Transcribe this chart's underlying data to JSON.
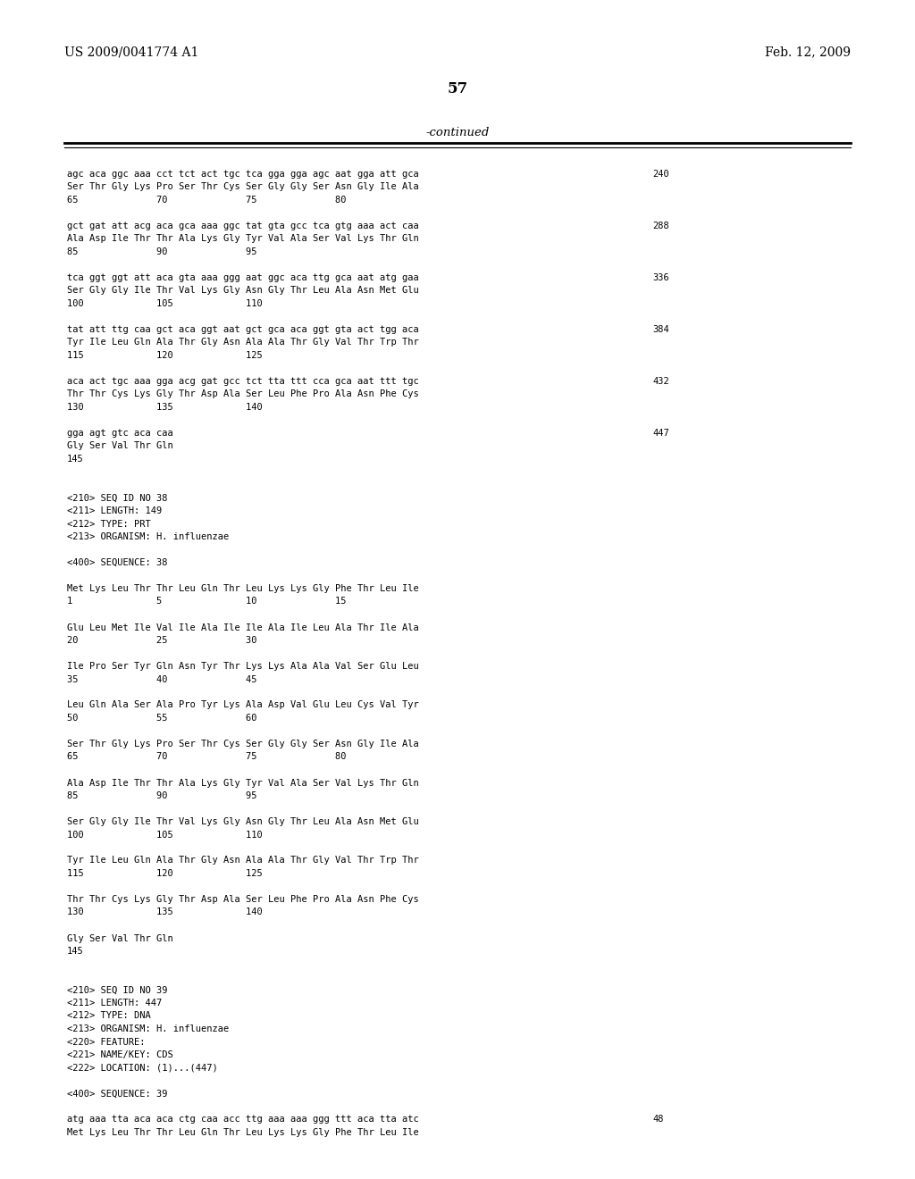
{
  "header_left": "US 2009/0041774 A1",
  "header_right": "Feb. 12, 2009",
  "page_number": "57",
  "continued_label": "-continued",
  "background_color": "#ffffff",
  "text_color": "#000000",
  "content": [
    {
      "text": "agc aca ggc aaa cct tct act tgc tca gga gga agc aat gga att gca",
      "num": "240"
    },
    {
      "text": "Ser Thr Gly Lys Pro Ser Thr Cys Ser Gly Gly Ser Asn Gly Ile Ala",
      "num": ""
    },
    {
      "text": "65              70              75              80",
      "num": ""
    },
    {
      "text": "",
      "num": ""
    },
    {
      "text": "gct gat att acg aca gca aaa ggc tat gta gcc tca gtg aaa act caa",
      "num": "288"
    },
    {
      "text": "Ala Asp Ile Thr Thr Ala Lys Gly Tyr Val Ala Ser Val Lys Thr Gln",
      "num": ""
    },
    {
      "text": "85              90              95",
      "num": ""
    },
    {
      "text": "",
      "num": ""
    },
    {
      "text": "tca ggt ggt att aca gta aaa ggg aat ggc aca ttg gca aat atg gaa",
      "num": "336"
    },
    {
      "text": "Ser Gly Gly Ile Thr Val Lys Gly Asn Gly Thr Leu Ala Asn Met Glu",
      "num": ""
    },
    {
      "text": "100             105             110",
      "num": ""
    },
    {
      "text": "",
      "num": ""
    },
    {
      "text": "tat att ttg caa gct aca ggt aat gct gca aca ggt gta act tgg aca",
      "num": "384"
    },
    {
      "text": "Tyr Ile Leu Gln Ala Thr Gly Asn Ala Ala Thr Gly Val Thr Trp Thr",
      "num": ""
    },
    {
      "text": "115             120             125",
      "num": ""
    },
    {
      "text": "",
      "num": ""
    },
    {
      "text": "aca act tgc aaa gga acg gat gcc tct tta ttt cca gca aat ttt tgc",
      "num": "432"
    },
    {
      "text": "Thr Thr Cys Lys Gly Thr Asp Ala Ser Leu Phe Pro Ala Asn Phe Cys",
      "num": ""
    },
    {
      "text": "130             135             140",
      "num": ""
    },
    {
      "text": "",
      "num": ""
    },
    {
      "text": "gga agt gtc aca caa",
      "num": "447"
    },
    {
      "text": "Gly Ser Val Thr Gln",
      "num": ""
    },
    {
      "text": "145",
      "num": ""
    },
    {
      "text": "",
      "num": ""
    },
    {
      "text": "",
      "num": ""
    },
    {
      "text": "<210> SEQ ID NO 38",
      "num": ""
    },
    {
      "text": "<211> LENGTH: 149",
      "num": ""
    },
    {
      "text": "<212> TYPE: PRT",
      "num": ""
    },
    {
      "text": "<213> ORGANISM: H. influenzae",
      "num": ""
    },
    {
      "text": "",
      "num": ""
    },
    {
      "text": "<400> SEQUENCE: 38",
      "num": ""
    },
    {
      "text": "",
      "num": ""
    },
    {
      "text": "Met Lys Leu Thr Thr Leu Gln Thr Leu Lys Lys Gly Phe Thr Leu Ile",
      "num": ""
    },
    {
      "text": "1               5               10              15",
      "num": ""
    },
    {
      "text": "",
      "num": ""
    },
    {
      "text": "Glu Leu Met Ile Val Ile Ala Ile Ile Ala Ile Leu Ala Thr Ile Ala",
      "num": ""
    },
    {
      "text": "20              25              30",
      "num": ""
    },
    {
      "text": "",
      "num": ""
    },
    {
      "text": "Ile Pro Ser Tyr Gln Asn Tyr Thr Lys Lys Ala Ala Val Ser Glu Leu",
      "num": ""
    },
    {
      "text": "35              40              45",
      "num": ""
    },
    {
      "text": "",
      "num": ""
    },
    {
      "text": "Leu Gln Ala Ser Ala Pro Tyr Lys Ala Asp Val Glu Leu Cys Val Tyr",
      "num": ""
    },
    {
      "text": "50              55              60",
      "num": ""
    },
    {
      "text": "",
      "num": ""
    },
    {
      "text": "Ser Thr Gly Lys Pro Ser Thr Cys Ser Gly Gly Ser Asn Gly Ile Ala",
      "num": ""
    },
    {
      "text": "65              70              75              80",
      "num": ""
    },
    {
      "text": "",
      "num": ""
    },
    {
      "text": "Ala Asp Ile Thr Thr Ala Lys Gly Tyr Val Ala Ser Val Lys Thr Gln",
      "num": ""
    },
    {
      "text": "85              90              95",
      "num": ""
    },
    {
      "text": "",
      "num": ""
    },
    {
      "text": "Ser Gly Gly Ile Thr Val Lys Gly Asn Gly Thr Leu Ala Asn Met Glu",
      "num": ""
    },
    {
      "text": "100             105             110",
      "num": ""
    },
    {
      "text": "",
      "num": ""
    },
    {
      "text": "Tyr Ile Leu Gln Ala Thr Gly Asn Ala Ala Thr Gly Val Thr Trp Thr",
      "num": ""
    },
    {
      "text": "115             120             125",
      "num": ""
    },
    {
      "text": "",
      "num": ""
    },
    {
      "text": "Thr Thr Cys Lys Gly Thr Asp Ala Ser Leu Phe Pro Ala Asn Phe Cys",
      "num": ""
    },
    {
      "text": "130             135             140",
      "num": ""
    },
    {
      "text": "",
      "num": ""
    },
    {
      "text": "Gly Ser Val Thr Gln",
      "num": ""
    },
    {
      "text": "145",
      "num": ""
    },
    {
      "text": "",
      "num": ""
    },
    {
      "text": "",
      "num": ""
    },
    {
      "text": "<210> SEQ ID NO 39",
      "num": ""
    },
    {
      "text": "<211> LENGTH: 447",
      "num": ""
    },
    {
      "text": "<212> TYPE: DNA",
      "num": ""
    },
    {
      "text": "<213> ORGANISM: H. influenzae",
      "num": ""
    },
    {
      "text": "<220> FEATURE:",
      "num": ""
    },
    {
      "text": "<221> NAME/KEY: CDS",
      "num": ""
    },
    {
      "text": "<222> LOCATION: (1)...(447)",
      "num": ""
    },
    {
      "text": "",
      "num": ""
    },
    {
      "text": "<400> SEQUENCE: 39",
      "num": ""
    },
    {
      "text": "",
      "num": ""
    },
    {
      "text": "atg aaa tta aca aca ctg caa acc ttg aaa aaa ggg ttt aca tta atc",
      "num": "48"
    },
    {
      "text": "Met Lys Leu Thr Thr Leu Gln Thr Leu Lys Lys Gly Phe Thr Leu Ile",
      "num": ""
    }
  ]
}
